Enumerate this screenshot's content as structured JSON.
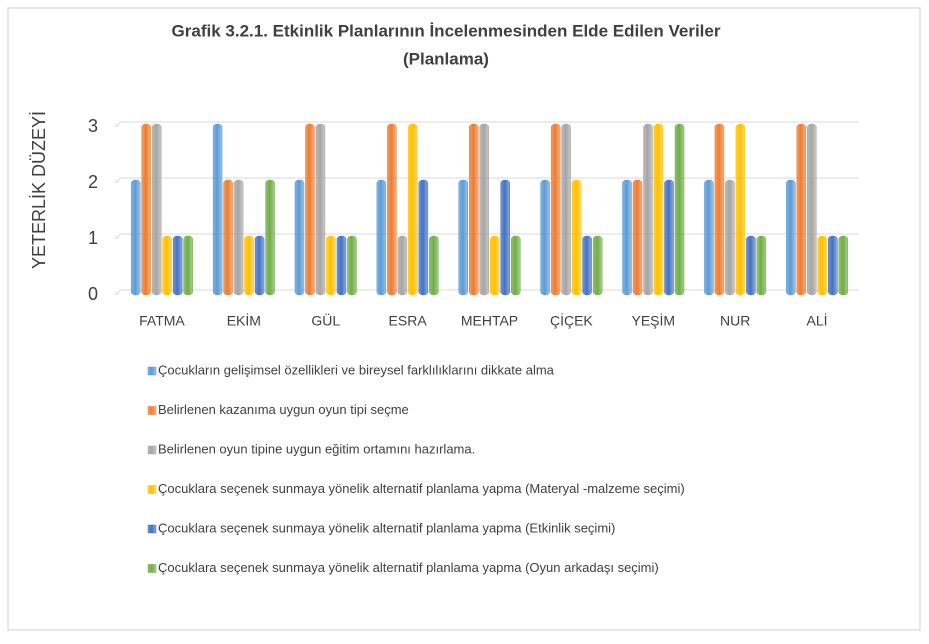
{
  "chart_data": {
    "type": "bar",
    "title": [
      "Grafik 3.2.1. Etkinlik Planlarının İncelenmesinden Elde Edilen Veriler",
      "(Planlama)"
    ],
    "y_axis_label": "YETERLİK DÜZEYİ",
    "categories": [
      "FATMA",
      "EKİM",
      "GÜL",
      "ESRA",
      "MEHTAP",
      "ÇİÇEK",
      "YEŞİM",
      "NUR",
      "ALİ"
    ],
    "series": [
      {
        "name": "Çocukların gelişimsel özellikleri ve bireysel farklılıklarını dikkate alma",
        "color": "#5b9bd5",
        "values": [
          2,
          3,
          2,
          2,
          2,
          2,
          2,
          2,
          2
        ]
      },
      {
        "name": "Belirlenen kazanıma uygun oyun tipi seçme",
        "color": "#ed7d31",
        "values": [
          3,
          2,
          3,
          3,
          3,
          3,
          2,
          3,
          3
        ]
      },
      {
        "name": "Belirlenen oyun tipine uygun eğitim ortamını hazırlama.",
        "color": "#a5a5a5",
        "values": [
          3,
          2,
          3,
          1,
          3,
          3,
          3,
          2,
          3
        ]
      },
      {
        "name": "Çocuklara seçenek sunmaya yönelik alternatif planlama yapma (Materyal -malzeme seçimi)",
        "color": "#ffc000",
        "values": [
          1,
          1,
          1,
          3,
          1,
          2,
          3,
          3,
          1
        ]
      },
      {
        "name": "Çocuklara seçenek sunmaya yönelik alternatif planlama yapma (Etkinlik seçimi)",
        "color": "#4472c4",
        "values": [
          1,
          1,
          1,
          2,
          2,
          1,
          2,
          1,
          1
        ]
      },
      {
        "name": "Çocuklara seçenek sunmaya yönelik alternatif planlama yapma (Oyun arkadaşı seçimi)",
        "color": "#70ad47",
        "values": [
          1,
          2,
          1,
          1,
          1,
          1,
          3,
          1,
          1
        ]
      }
    ],
    "ylim": [
      0,
      3
    ],
    "yticks": [
      0,
      1,
      2,
      3
    ],
    "grid": true
  }
}
